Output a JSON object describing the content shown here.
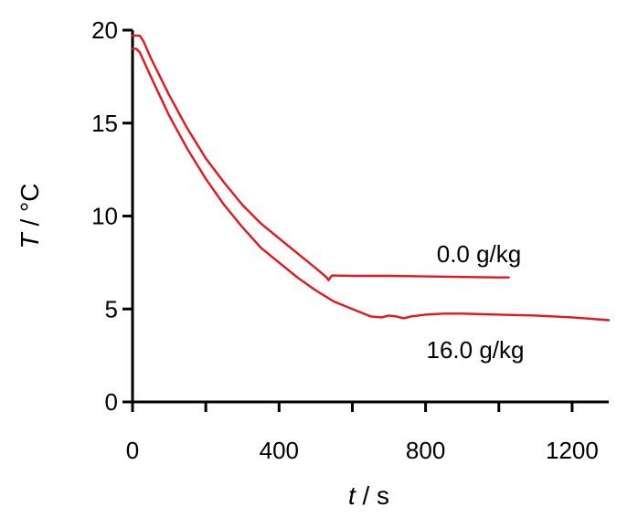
{
  "chart_data": {
    "type": "line",
    "xlabel": {
      "var": "t",
      "unit": " / s"
    },
    "ylabel": {
      "var": "T",
      "unit": " / °C"
    },
    "xlim": [
      0,
      1300
    ],
    "ylim": [
      0,
      20
    ],
    "x_ticks": [
      0,
      400,
      800,
      1200
    ],
    "x_minor_ticks": [
      200,
      600,
      1000
    ],
    "y_ticks": [
      0,
      5,
      10,
      15,
      20
    ],
    "grid": false,
    "line_color": "#e8141e",
    "series": [
      {
        "name": "0.0 g/kg",
        "points": [
          [
            0,
            19.7
          ],
          [
            20,
            19.7
          ],
          [
            30,
            19.4
          ],
          [
            50,
            18.5
          ],
          [
            100,
            16.5
          ],
          [
            150,
            14.7
          ],
          [
            200,
            13.1
          ],
          [
            250,
            11.8
          ],
          [
            300,
            10.6
          ],
          [
            350,
            9.6
          ],
          [
            400,
            8.8
          ],
          [
            450,
            8.0
          ],
          [
            500,
            7.2
          ],
          [
            530,
            6.7
          ],
          [
            535,
            6.55
          ],
          [
            540,
            6.7
          ],
          [
            545,
            6.8
          ],
          [
            600,
            6.78
          ],
          [
            700,
            6.78
          ],
          [
            800,
            6.75
          ],
          [
            900,
            6.72
          ],
          [
            1000,
            6.7
          ],
          [
            1027,
            6.7
          ]
        ]
      },
      {
        "name": "16.0 g/kg",
        "points": [
          [
            0,
            19.0
          ],
          [
            10,
            19.0
          ],
          [
            20,
            18.8
          ],
          [
            50,
            17.5
          ],
          [
            100,
            15.4
          ],
          [
            150,
            13.6
          ],
          [
            200,
            12.0
          ],
          [
            250,
            10.6
          ],
          [
            300,
            9.4
          ],
          [
            350,
            8.3
          ],
          [
            400,
            7.5
          ],
          [
            450,
            6.7
          ],
          [
            500,
            6.0
          ],
          [
            550,
            5.4
          ],
          [
            600,
            5.0
          ],
          [
            650,
            4.6
          ],
          [
            680,
            4.55
          ],
          [
            700,
            4.65
          ],
          [
            720,
            4.6
          ],
          [
            740,
            4.5
          ],
          [
            760,
            4.6
          ],
          [
            800,
            4.7
          ],
          [
            850,
            4.75
          ],
          [
            900,
            4.75
          ],
          [
            1000,
            4.7
          ],
          [
            1100,
            4.65
          ],
          [
            1200,
            4.55
          ],
          [
            1300,
            4.4
          ]
        ]
      }
    ]
  }
}
